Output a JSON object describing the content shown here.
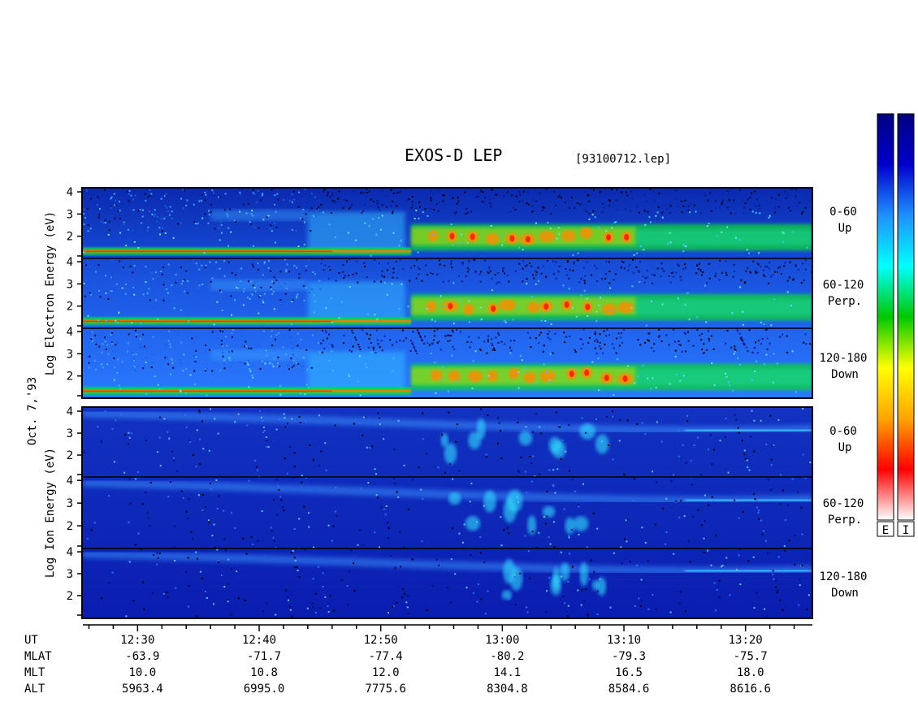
{
  "chart_data": {
    "type": "heatmap",
    "title": "EXOS-D LEP",
    "file_label": "[93100712.lep]",
    "date_label": "Oct. 7,'93",
    "electron_ylabel": [
      "Log",
      "Electron",
      "Energy",
      "(eV)"
    ],
    "ion_ylabel": [
      "Log",
      "Ion",
      "Energy",
      "(eV)"
    ],
    "energy_ticks": [
      2,
      3,
      4
    ],
    "panels": [
      {
        "group": "electron",
        "angle": "0-60",
        "direction": "Up"
      },
      {
        "group": "electron",
        "angle": "60-120",
        "direction": "Perp."
      },
      {
        "group": "electron",
        "angle": "120-180",
        "direction": "Down"
      },
      {
        "group": "ion",
        "angle": "0-60",
        "direction": "Up"
      },
      {
        "group": "ion",
        "angle": "60-120",
        "direction": "Perp."
      },
      {
        "group": "ion",
        "angle": "120-180",
        "direction": "Down"
      }
    ],
    "time_range_minutes": [
      745.5,
      805.5
    ],
    "table_row_labels": [
      "UT",
      "MLAT",
      "MLT",
      "ALT"
    ],
    "ephemeris": [
      {
        "minute": 750,
        "UT": "12:30",
        "MLAT": "-63.9",
        "MLT": "10.0",
        "ALT": "5963.4"
      },
      {
        "minute": 760,
        "UT": "12:40",
        "MLAT": "-71.7",
        "MLT": "10.8",
        "ALT": "6995.0"
      },
      {
        "minute": 770,
        "UT": "12:50",
        "MLAT": "-77.4",
        "MLT": "12.0",
        "ALT": "7775.6"
      },
      {
        "minute": 780,
        "UT": "13:00",
        "MLAT": "-80.2",
        "MLT": "14.1",
        "ALT": "8304.8"
      },
      {
        "minute": 790,
        "UT": "13:10",
        "MLAT": "-79.3",
        "MLT": "16.5",
        "ALT": "8584.6"
      },
      {
        "minute": 800,
        "UT": "13:20",
        "MLAT": "-75.7",
        "MLT": "18.0",
        "ALT": "8616.6"
      }
    ],
    "colorbars": [
      {
        "label": "E"
      },
      {
        "label": "I"
      }
    ],
    "colorbar_colors": [
      "#ffffff",
      "#ff0000",
      "#ffa500",
      "#ffff00",
      "#00c800",
      "#00ffff",
      "#1e90ff",
      "#0000cd",
      "#000080"
    ]
  }
}
